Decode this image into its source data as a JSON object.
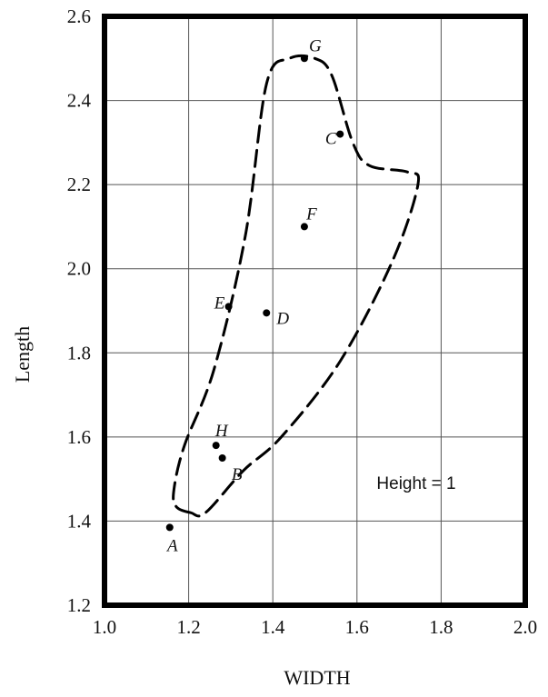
{
  "chart_data": {
    "type": "scatter",
    "xlabel": "WIDTH",
    "ylabel": "Length",
    "xlim": [
      1.0,
      2.0
    ],
    "ylim": [
      1.2,
      2.6
    ],
    "xticks": [
      1.0,
      1.2,
      1.4,
      1.6,
      1.8,
      2.0
    ],
    "xtick_labels": [
      "1.0",
      "1.2",
      "1.4",
      "1.6",
      "1.8",
      "2.0"
    ],
    "yticks": [
      1.2,
      1.4,
      1.6,
      1.8,
      2.0,
      2.2,
      2.4,
      2.6
    ],
    "ytick_labels": [
      "1.2",
      "1.4",
      "1.6",
      "1.8",
      "2.0",
      "2.2",
      "2.4",
      "2.6"
    ],
    "grid": true,
    "annotation": "Height = 1",
    "points": [
      {
        "label": "A",
        "x": 1.155,
        "y": 1.385
      },
      {
        "label": "B",
        "x": 1.28,
        "y": 1.55
      },
      {
        "label": "C",
        "x": 1.56,
        "y": 2.32
      },
      {
        "label": "D",
        "x": 1.385,
        "y": 1.895
      },
      {
        "label": "E",
        "x": 1.295,
        "y": 1.91
      },
      {
        "label": "F",
        "x": 1.475,
        "y": 2.1
      },
      {
        "label": "G",
        "x": 1.475,
        "y": 2.5
      },
      {
        "label": "H",
        "x": 1.265,
        "y": 1.58
      }
    ],
    "boundary": [
      [
        1.205,
        1.42
      ],
      [
        1.17,
        1.435
      ],
      [
        1.165,
        1.475
      ],
      [
        1.19,
        1.58
      ],
      [
        1.26,
        1.76
      ],
      [
        1.335,
        2.08
      ],
      [
        1.385,
        2.44
      ],
      [
        1.44,
        2.5
      ],
      [
        1.5,
        2.5
      ],
      [
        1.54,
        2.46
      ],
      [
        1.59,
        2.3
      ],
      [
        1.63,
        2.245
      ],
      [
        1.72,
        2.23
      ],
      [
        1.745,
        2.2
      ],
      [
        1.685,
        2.02
      ],
      [
        1.56,
        1.78
      ],
      [
        1.42,
        1.6
      ],
      [
        1.33,
        1.52
      ],
      [
        1.24,
        1.42
      ]
    ]
  }
}
